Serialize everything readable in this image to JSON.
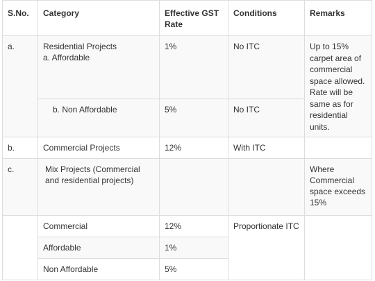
{
  "headers": [
    "S.No.",
    "Category",
    "Effective GST Rate",
    "Conditions",
    "Remarks"
  ],
  "rows": {
    "residential": {
      "sno": "a.",
      "category_line1": "Residential Projects",
      "category_line2": "a. Affordable",
      "rate": "1%",
      "conditions": "No ITC",
      "remarks": "Up to 15% carpet area of commercial space allowed. Rate will be same as for residential units."
    },
    "non_affordable": {
      "category": "b. Non Affordable",
      "rate": "5%",
      "conditions": "No ITC"
    },
    "commercial_projects": {
      "sno": "b.",
      "category": "Commercial Projects",
      "rate": "12%",
      "conditions": "With ITC"
    },
    "mix_projects": {
      "sno": "c.",
      "category": "Mix Projects (Commercial and residential projects)",
      "remarks": "Where Commercial space exceeds 15%"
    },
    "mix_commercial": {
      "category": "Commercial",
      "rate": "12%",
      "conditions": "Proportionate ITC"
    },
    "mix_affordable": {
      "category": "Affordable",
      "rate": "1%"
    },
    "mix_non_affordable": {
      "category": "Non Affordable",
      "rate": "5%"
    }
  }
}
